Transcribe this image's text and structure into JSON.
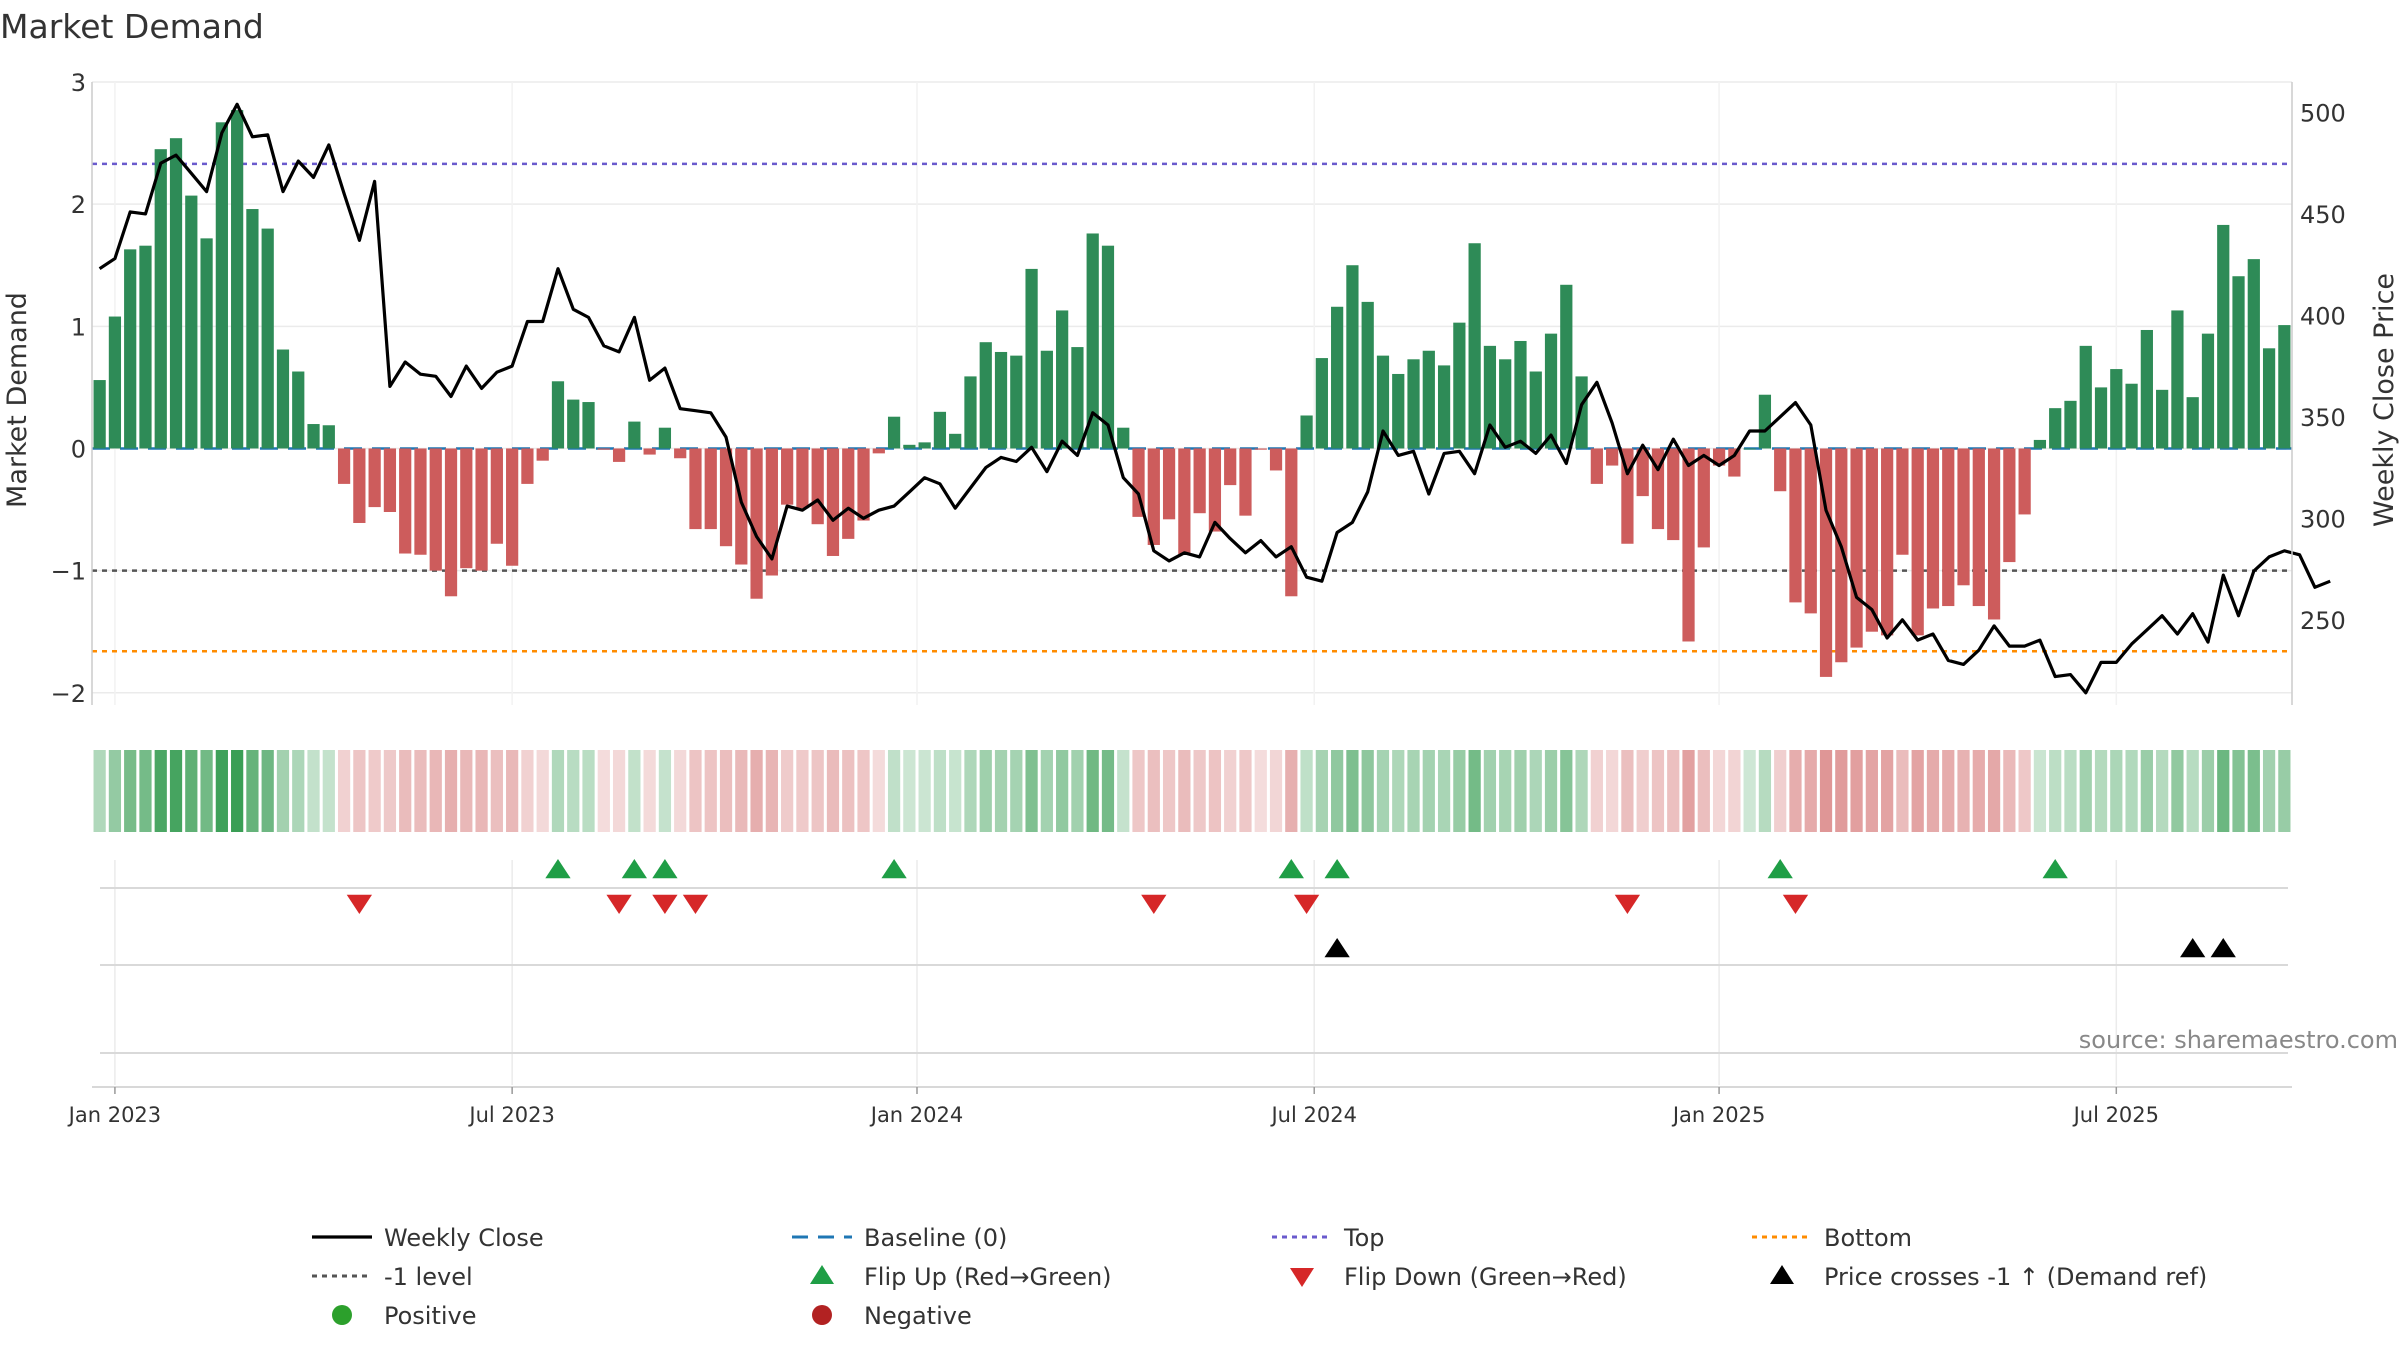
{
  "chart_data": {
    "type": "bar",
    "title": "Market Demand",
    "ylabel": "Market Demand",
    "y2label": "Weekly Close Price",
    "source": "source: sharemaestro.com",
    "ylim": [
      -2.1,
      3.0
    ],
    "y2lim": [
      208,
      515
    ],
    "yticks": [
      "3",
      "2",
      "1",
      "0",
      "−1",
      "−2"
    ],
    "yticks_values": [
      3,
      2,
      1,
      0,
      -1,
      -2
    ],
    "y2ticks": [
      "500",
      "450",
      "400",
      "350",
      "300",
      "250"
    ],
    "y2ticks_values": [
      500,
      450,
      400,
      350,
      300,
      250
    ],
    "xticks": [
      "Jan 2023",
      "Jul 2023",
      "Jan 2024",
      "Jul 2024",
      "Jan 2025",
      "Jul 2025"
    ],
    "xticks_weeks": [
      1,
      27,
      53.5,
      79.5,
      106,
      132
    ],
    "grid": true,
    "reference_lines": {
      "top": 2.33,
      "bottom": -1.66,
      "minus_one": -1.0,
      "baseline": 0
    },
    "colors": {
      "positive": "#2e8b57",
      "negative": "#cd5c5c",
      "close": "#000000",
      "baseline": "#1f77b4",
      "top": "#6a5acd",
      "bottom": "#ff8c00",
      "minus_one": "#555555",
      "flip_up": "#1f9e46",
      "flip_down": "#d62728",
      "cross": "#000000",
      "legend_positive": "#2ca02c",
      "legend_negative": "#b22222"
    },
    "series": [
      {
        "name": "Market Demand",
        "values": [
          0.56,
          1.08,
          1.63,
          1.66,
          2.45,
          2.54,
          2.07,
          1.72,
          2.67,
          2.77,
          1.96,
          1.8,
          0.81,
          0.63,
          0.2,
          0.19,
          -0.29,
          -0.61,
          -0.48,
          -0.52,
          -0.86,
          -0.87,
          -1.0,
          -1.21,
          -0.98,
          -1.0,
          -0.78,
          -0.96,
          -0.29,
          -0.1,
          0.55,
          0.4,
          0.38,
          -0.01,
          -0.11,
          0.22,
          -0.05,
          0.17,
          -0.08,
          -0.66,
          -0.66,
          -0.8,
          -0.95,
          -1.23,
          -1.04,
          -0.46,
          -0.49,
          -0.62,
          -0.88,
          -0.74,
          -0.59,
          -0.04,
          0.26,
          0.03,
          0.05,
          0.3,
          0.12,
          0.59,
          0.87,
          0.79,
          0.76,
          1.47,
          0.8,
          1.13,
          0.83,
          1.76,
          1.66,
          0.17,
          -0.56,
          -0.79,
          -0.58,
          -0.87,
          -0.53,
          -0.68,
          -0.3,
          -0.55,
          -0.01,
          -0.18,
          -1.21,
          0.27,
          0.74,
          1.16,
          1.5,
          1.2,
          0.76,
          0.61,
          0.73,
          0.8,
          0.68,
          1.03,
          1.68,
          0.84,
          0.73,
          0.88,
          0.63,
          0.94,
          1.34,
          0.59,
          -0.29,
          -0.14,
          -0.78,
          -0.39,
          -0.66,
          -0.75,
          -1.58,
          -0.81,
          -0.14,
          -0.23,
          0.0,
          0.44,
          -0.35,
          -1.26,
          -1.35,
          -1.87,
          -1.75,
          -1.63,
          -1.5,
          -1.53,
          -0.87,
          -1.53,
          -1.31,
          -1.29,
          -1.12,
          -1.29,
          -1.4,
          -0.93,
          -0.54,
          0.07,
          0.33,
          0.39,
          0.84,
          0.5,
          0.65,
          0.53,
          0.97,
          0.48,
          1.13,
          0.42,
          0.94,
          1.83,
          1.41,
          1.55,
          0.82,
          1.01
        ]
      },
      {
        "name": "Weekly Close",
        "values": [
          423,
          428,
          451,
          450,
          475,
          479,
          470,
          461,
          490,
          504,
          488,
          489,
          461,
          476,
          468,
          484,
          460,
          437,
          466,
          365,
          377,
          371,
          370,
          360,
          375,
          364,
          372,
          375,
          397,
          397,
          423,
          403,
          399,
          385,
          382,
          399,
          368,
          374,
          354,
          353,
          352,
          340,
          308,
          291,
          280,
          306,
          304,
          309,
          299,
          305,
          300,
          304,
          306,
          313,
          320,
          317,
          305,
          315,
          325,
          330,
          328,
          335,
          323,
          338,
          331,
          352,
          346,
          320,
          312,
          284,
          279,
          283,
          281,
          298,
          290,
          283,
          289,
          281,
          286,
          271,
          269,
          293,
          298,
          313,
          343,
          331,
          333,
          312,
          332,
          333,
          322,
          346,
          335,
          338,
          332,
          341,
          327,
          356,
          367,
          347,
          322,
          336,
          324,
          339,
          326,
          331,
          326,
          331,
          343,
          343,
          350,
          357,
          346,
          304,
          286,
          261,
          255,
          241,
          250,
          240,
          243,
          230,
          228,
          235,
          247,
          237,
          237,
          240,
          222,
          223,
          214,
          229,
          229,
          238,
          245,
          252,
          243,
          253,
          239,
          272,
          252,
          274,
          281,
          284,
          282,
          266,
          269
        ]
      }
    ],
    "flip_up_weeks": [
      30,
      35,
      37,
      52,
      78,
      81,
      110,
      128
    ],
    "flip_down_weeks": [
      17,
      34,
      37,
      39,
      69,
      79,
      100,
      111
    ],
    "cross_weeks": [
      81,
      137,
      139
    ],
    "legend": [
      {
        "label": "Weekly Close",
        "icon": "solid-line-icon"
      },
      {
        "label": "Baseline (0)",
        "icon": "dashed-line-icon"
      },
      {
        "label": "Top",
        "icon": "dotted-line-icon"
      },
      {
        "label": "Bottom",
        "icon": "dotted-line-icon"
      },
      {
        "label": "-1 level",
        "icon": "dotted-line-icon"
      },
      {
        "label": "Flip Up (Red→Green)",
        "icon": "triangle-up-icon"
      },
      {
        "label": "Flip Down (Green→Red)",
        "icon": "triangle-down-icon"
      },
      {
        "label": "Price crosses -1 ↑ (Demand ref)",
        "icon": "triangle-up-icon"
      },
      {
        "label": "Positive",
        "icon": "circle-icon"
      },
      {
        "label": "Negative",
        "icon": "circle-icon"
      }
    ]
  }
}
